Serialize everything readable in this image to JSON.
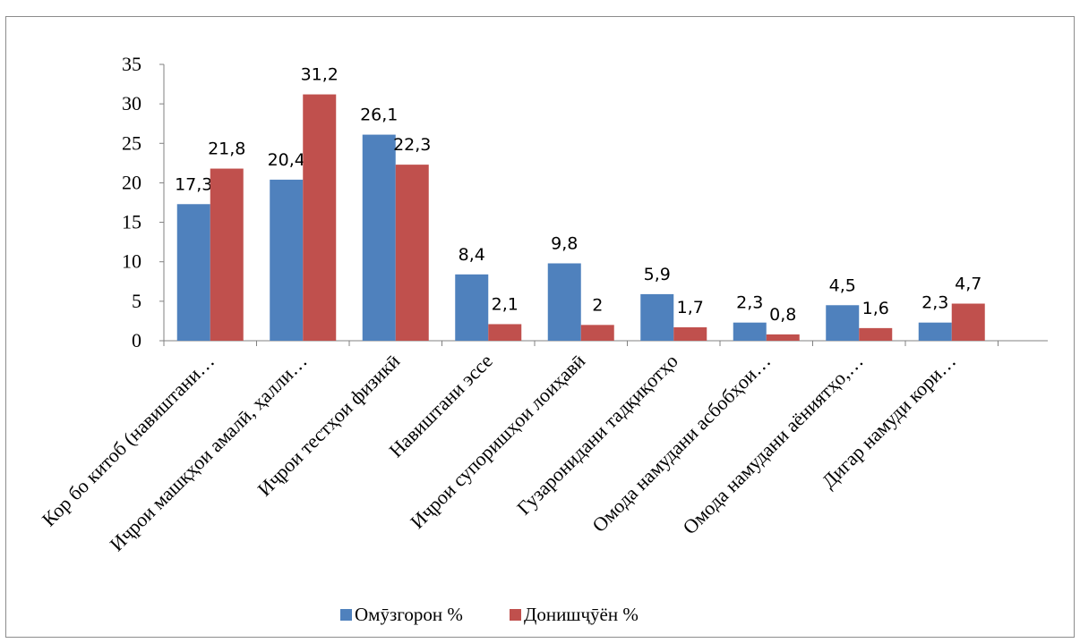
{
  "chart_data": {
    "type": "bar",
    "title": "",
    "xlabel": "",
    "ylabel": "",
    "ylim": [
      0,
      35
    ],
    "yticks": [
      0,
      5,
      10,
      15,
      20,
      25,
      30,
      35
    ],
    "grid": false,
    "legend_position": "bottom",
    "categories": [
      "Кор бо китоб (навиштани…",
      "Иҷрои машқҳои амалӣ, ҳалли…",
      "Иҷрои тестҳои физикӣ",
      "Навиштани эссе",
      "Иҷрои супоришҳои лоиҳавӣ",
      "Гузаронидани тадқиқотҳо",
      "Омода намудани асбобҳои…",
      "Омода намудани аёниятҳо,…",
      "Дигар намуди кори…"
    ],
    "series": [
      {
        "name": "Омӯзгорон  %",
        "color": "#4f81bd",
        "values": [
          17.3,
          20.4,
          26.1,
          8.4,
          9.8,
          5.9,
          2.3,
          4.5,
          2.3
        ],
        "labels": [
          "17,3",
          "20,4",
          "26,1",
          "8,4",
          "9,8",
          "5,9",
          "2,3",
          "4,5",
          "2,3"
        ]
      },
      {
        "name": "Донишҷӯён %",
        "color": "#c0504d",
        "values": [
          21.8,
          31.2,
          22.3,
          2.1,
          2,
          1.7,
          0.8,
          1.6,
          4.7
        ],
        "labels": [
          "21,8",
          "31,2",
          "22,3",
          "2,1",
          "2",
          "1,7",
          "0,8",
          "1,6",
          "4,7"
        ]
      }
    ]
  }
}
